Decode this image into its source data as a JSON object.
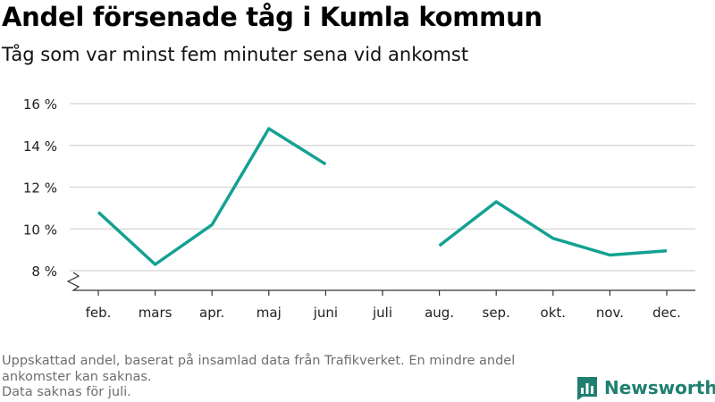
{
  "title": "Andel försenade tåg i Kumla kommun",
  "subtitle": "Tåg som var minst fem minuter sena vid ankomst",
  "footer": {
    "note_line1": "Uppskattad andel, baserat på insamlad data från Trafikverket. En mindre andel",
    "note_line2": "ankomster kan saknas.",
    "note_line3": "Data saknas för juli."
  },
  "brand": {
    "name": "Newsworthy",
    "color": "#1f7f70",
    "icon": "bar-chart-logo-icon"
  },
  "chart_data": {
    "type": "line",
    "categories": [
      "feb.",
      "mars",
      "apr.",
      "maj",
      "juni",
      "juli",
      "aug.",
      "sep.",
      "okt.",
      "nov.",
      "dec."
    ],
    "series": [
      {
        "values": [
          10.8,
          8.3,
          10.2,
          14.8,
          13.1,
          null,
          9.2,
          11.3,
          9.55,
          8.75,
          8.95
        ],
        "color": "#13a192"
      }
    ],
    "y_ticks": [
      8,
      10,
      12,
      14,
      16
    ],
    "y_tick_labels": [
      "8 %",
      "10 %",
      "12 %",
      "14 %",
      "16 %"
    ],
    "ylim": [
      7.2,
      16
    ],
    "axis_break": true,
    "grid": true,
    "xlabel": "",
    "ylabel": ""
  }
}
